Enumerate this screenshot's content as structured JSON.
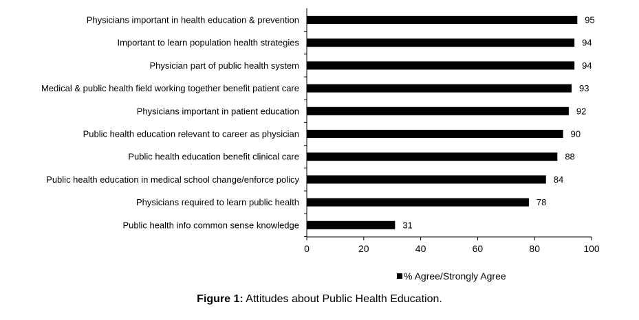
{
  "chart_data": {
    "type": "bar",
    "orientation": "horizontal",
    "categories": [
      "Physicians important in health education & prevention",
      "Important to learn population health strategies",
      "Physician part of public health system",
      "Medical & public health field working together benefit patient care",
      "Physicians important in patient education",
      "Public health education relevant to career as physician",
      "Public health education benefit clinical care",
      "Public health education in medical school change/enforce policy",
      "Physicians required to learn public health",
      "Public health info common sense knowledge"
    ],
    "series": [
      {
        "name": "% Agree/Strongly Agree",
        "values": [
          95,
          94,
          94,
          93,
          92,
          90,
          88,
          84,
          78,
          31
        ],
        "labels": [
          "95",
          "94",
          "94",
          "93",
          "92",
          "90",
          "88",
          "84",
          "78",
          "31"
        ]
      }
    ],
    "xlim": [
      0,
      100
    ],
    "xticks": [
      "0",
      "20",
      "40",
      "60",
      "80",
      "100"
    ],
    "grid": false,
    "legend_position": "bottom",
    "bar_color": "#000000"
  },
  "caption": {
    "label": "Figure 1:",
    "text": " Attitudes about Public Health Education."
  }
}
